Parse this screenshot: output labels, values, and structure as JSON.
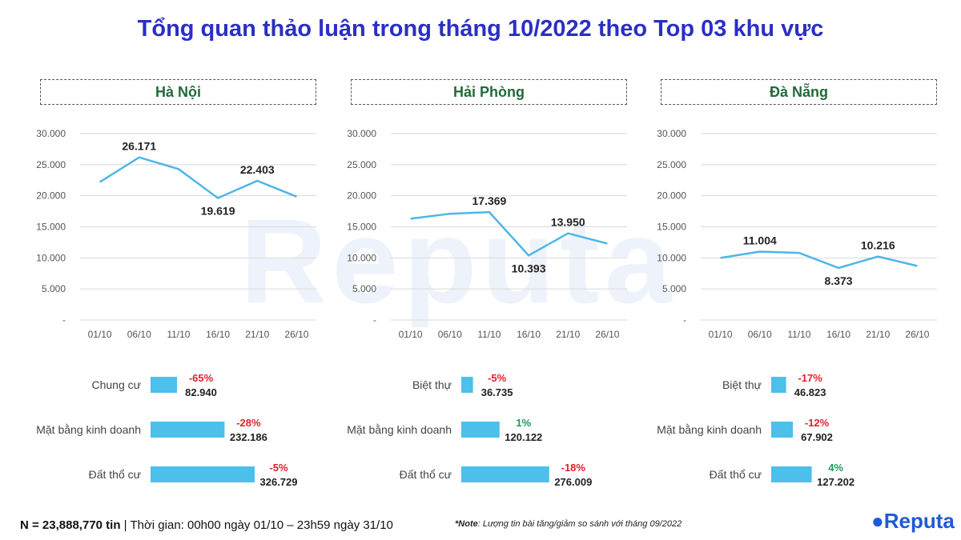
{
  "title": "Tổng quan thảo luận trong tháng 10/2022 theo Top 03 khu vực",
  "watermark": "Reputa",
  "footer": {
    "n_label": "N = 23,888,770 tin",
    "period": " | Thời gian: 00h00 ngày 01/10 – 23h59 ngày 31/10",
    "note_label": "*Note",
    "note_text": ": Lượng tin bài tăng/giảm so sánh với tháng 09/2022"
  },
  "logo": {
    "text": "Reputa",
    "color": "#1e5bd6"
  },
  "colors": {
    "line": "#4db6e8",
    "bar": "#4cc0ea",
    "negative": "#e0202a",
    "positive": "#1b9a57",
    "title": "#2b2fc4",
    "region": "#1f6b3a"
  },
  "chart_data": [
    {
      "type": "line",
      "region": "Hà Nội",
      "x": [
        "01/10",
        "06/10",
        "11/10",
        "16/10",
        "21/10",
        "26/10"
      ],
      "values": [
        22200,
        26171,
        24300,
        19619,
        22403,
        19850
      ],
      "data_labels": [
        "",
        "26.171",
        "",
        "19.619",
        "22.403",
        ""
      ],
      "y_ticks": [
        "-",
        "5.000",
        "10.000",
        "15.000",
        "20.000",
        "25.000",
        "30.000"
      ],
      "ylim": [
        0,
        30000
      ],
      "grid": true
    },
    {
      "type": "line",
      "region": "Hải Phòng",
      "x": [
        "01/10",
        "06/10",
        "11/10",
        "16/10",
        "21/10",
        "26/10"
      ],
      "values": [
        16300,
        17100,
        17369,
        10393,
        13950,
        12300
      ],
      "data_labels": [
        "",
        "",
        "17.369",
        "10.393",
        "13.950",
        ""
      ],
      "y_ticks": [
        "-",
        "5.000",
        "10.000",
        "15.000",
        "20.000",
        "25.000",
        "30.000"
      ],
      "ylim": [
        0,
        30000
      ],
      "grid": true
    },
    {
      "type": "line",
      "region": "Đà Nẵng",
      "x": [
        "01/10",
        "06/10",
        "11/10",
        "16/10",
        "21/10",
        "26/10"
      ],
      "values": [
        10000,
        11004,
        10800,
        8373,
        10216,
        8700
      ],
      "data_labels": [
        "",
        "11.004",
        "",
        "8.373",
        "10.216",
        ""
      ],
      "y_ticks": [
        "-",
        "5.000",
        "10.000",
        "15.000",
        "20.000",
        "25.000",
        "30.000"
      ],
      "ylim": [
        0,
        30000
      ],
      "grid": true
    },
    {
      "type": "bar",
      "region": "Hà Nội",
      "categories": [
        "Chung cư",
        "Mặt bằng kinh doanh",
        "Đất thổ cư"
      ],
      "values": [
        82940,
        232186,
        326729
      ],
      "value_labels": [
        "82.940",
        "232.186",
        "326.729"
      ],
      "change": [
        "-65%",
        "-28%",
        "-5%"
      ]
    },
    {
      "type": "bar",
      "region": "Hải Phòng",
      "categories": [
        "Biệt thự",
        "Mặt bằng kinh doanh",
        "Đất thổ cư"
      ],
      "values": [
        36735,
        120122,
        276009
      ],
      "value_labels": [
        "36.735",
        "120.122",
        "276.009"
      ],
      "change": [
        "-5%",
        "1%",
        "-18%"
      ]
    },
    {
      "type": "bar",
      "region": "Đà Nẵng",
      "categories": [
        "Biệt thự",
        "Mặt bằng kinh doanh",
        "Đất thổ cư"
      ],
      "values": [
        46823,
        67902,
        127202
      ],
      "value_labels": [
        "46.823",
        "67.902",
        "127.202"
      ],
      "change": [
        "-17%",
        "-12%",
        "4%"
      ]
    }
  ]
}
